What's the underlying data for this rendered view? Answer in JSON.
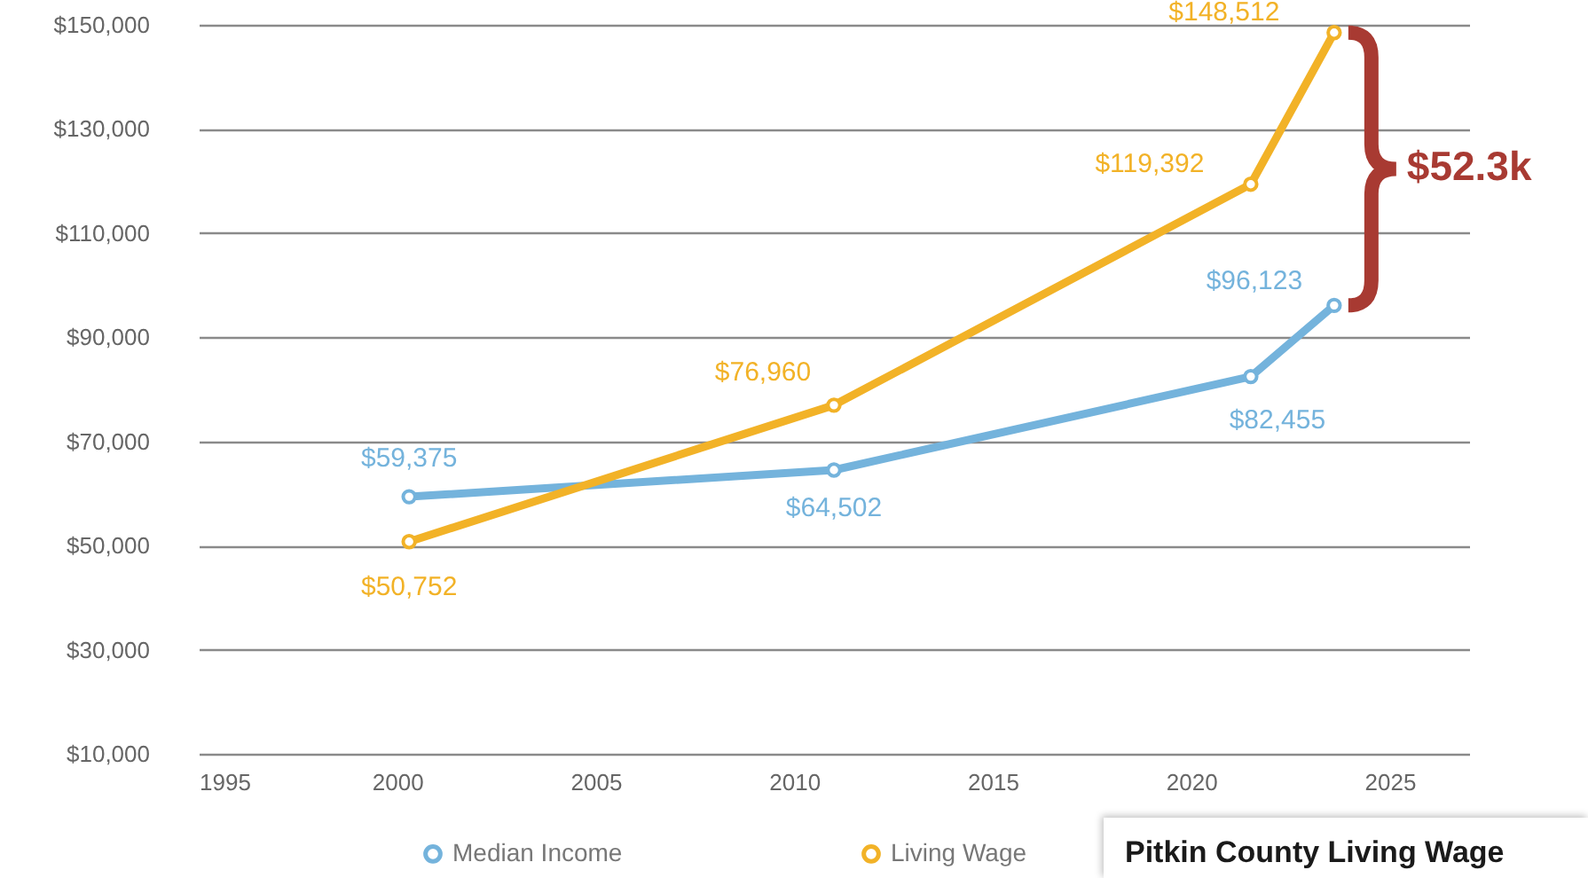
{
  "chart_data": {
    "type": "line",
    "x": [
      2000.3,
      2011,
      2021.5,
      2023.6
    ],
    "series": [
      {
        "name": "Median Income",
        "color": "#74b3dc",
        "values": [
          59375,
          64502,
          82455,
          96123
        ],
        "value_labels": [
          "$59,375",
          "$64,502",
          "$82,455",
          "$96,123"
        ]
      },
      {
        "name": "Living Wage",
        "color": "#f2b227",
        "values": [
          50752,
          76960,
          119392,
          148512
        ],
        "value_labels": [
          "$50,752",
          "$76,960",
          "$119,392",
          "$148,512"
        ]
      }
    ],
    "xlim": [
      1995,
      2027
    ],
    "xticks": [
      1995,
      2000,
      2005,
      2010,
      2015,
      2020,
      2025
    ],
    "ylim": [
      10000,
      150000
    ],
    "yticks": [
      {
        "value": 10000,
        "label": "$10,000"
      },
      {
        "value": 30000,
        "label": "$30,000"
      },
      {
        "value": 50000,
        "label": "$50,000"
      },
      {
        "value": 70000,
        "label": "$70,000"
      },
      {
        "value": 90000,
        "label": "$90,000"
      },
      {
        "value": 110000,
        "label": "$110,000"
      },
      {
        "value": 130000,
        "label": "$130,000"
      },
      {
        "value": 150000,
        "label": "$150,000"
      }
    ],
    "grid": "y",
    "legend": "bottom",
    "marker": "circle",
    "annotations": [
      "$52.3k",
      "Pitkin County Living Wage"
    ]
  }
}
